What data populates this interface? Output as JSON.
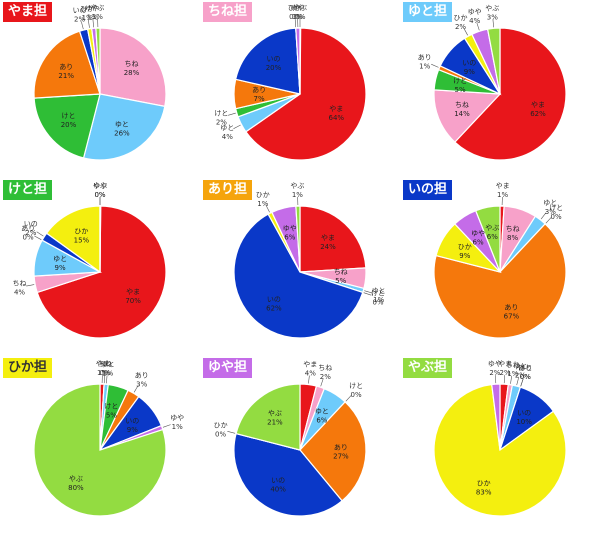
{
  "colors": {
    "やま": "#e8161b",
    "ちね": "#f7a1c9",
    "ゆと": "#6ecbfb",
    "けと": "#2fbe36",
    "あり": "#f5780c",
    "いの": "#0a38c8",
    "ひか": "#f4ef0f",
    "ゆや": "#c46ce8",
    "やぶ": "#93dc41"
  },
  "title_tag_colors": {
    "やま担": {
      "bg": "#e8161b",
      "fg": "#ffffff"
    },
    "ちね担": {
      "bg": "#f7a1c9",
      "fg": "#ffffff"
    },
    "ゆと担": {
      "bg": "#6ecbfb",
      "fg": "#ffffff"
    },
    "けと担": {
      "bg": "#2fbe36",
      "fg": "#ffffff"
    },
    "あり担": {
      "bg": "#f5a40c",
      "fg": "#ffffff"
    },
    "いの担": {
      "bg": "#0a38c8",
      "fg": "#ffffff"
    },
    "ひか担": {
      "bg": "#f4ef0f",
      "fg": "#333333"
    },
    "ゆや担": {
      "bg": "#c46ce8",
      "fg": "#ffffff"
    },
    "やぶ担": {
      "bg": "#93dc41",
      "fg": "#ffffff"
    }
  },
  "chart_data": [
    {
      "type": "pie",
      "title": "やま担",
      "labels": [
        "ちね",
        "ゆと",
        "けと",
        "あり",
        "いの",
        "ひか",
        "ゆや",
        "やぶ"
      ],
      "values": [
        28,
        26,
        20,
        21,
        2,
        1,
        1,
        1
      ]
    },
    {
      "type": "pie",
      "title": "ちね担",
      "labels": [
        "やま",
        "ゆと",
        "けと",
        "あり",
        "いの",
        "ひか",
        "ゆや",
        "やぶ"
      ],
      "values": [
        64,
        4,
        2,
        7,
        20,
        0,
        1,
        0
      ]
    },
    {
      "type": "pie",
      "title": "ゆと担",
      "labels": [
        "やま",
        "ちね",
        "けと",
        "あり",
        "いの",
        "ひか",
        "ゆや",
        "やぶ"
      ],
      "values": [
        62,
        14,
        5,
        1,
        9,
        2,
        4,
        3
      ]
    },
    {
      "type": "pie",
      "title": "けと担",
      "labels": [
        "やま",
        "ちね",
        "ゆと",
        "あり",
        "いの",
        "ひか",
        "ゆや",
        "やぶ"
      ],
      "values": [
        70,
        4,
        9,
        0,
        2,
        15,
        0,
        0
      ]
    },
    {
      "type": "pie",
      "title": "あり担",
      "labels": [
        "やま",
        "ちね",
        "ゆと",
        "けと",
        "いの",
        "ひか",
        "ゆや",
        "やぶ"
      ],
      "values": [
        24,
        5,
        1,
        0,
        62,
        1,
        6,
        1
      ]
    },
    {
      "type": "pie",
      "title": "いの担",
      "labels": [
        "やま",
        "ちね",
        "ゆと",
        "けと",
        "あり",
        "ひか",
        "ゆや",
        "やぶ"
      ],
      "values": [
        1,
        8,
        3,
        0,
        67,
        9,
        6,
        6
      ]
    },
    {
      "type": "pie",
      "title": "ひか担",
      "labels": [
        "やま",
        "ちね",
        "ゆと",
        "けと",
        "あり",
        "いの",
        "ゆや",
        "やぶ"
      ],
      "values": [
        1,
        0,
        1,
        5,
        3,
        9,
        1,
        80
      ]
    },
    {
      "type": "pie",
      "title": "ゆや担",
      "labels": [
        "やま",
        "ちね",
        "ゆと",
        "けと",
        "あり",
        "いの",
        "ひか",
        "やぶ"
      ],
      "values": [
        4,
        2,
        6,
        0,
        27,
        40,
        0,
        21
      ]
    },
    {
      "type": "pie",
      "title": "やぶ担",
      "labels": [
        "やま",
        "ちね",
        "ゆと",
        "けと",
        "あり",
        "いの",
        "ひか",
        "ゆや"
      ],
      "values": [
        2,
        1,
        2,
        0,
        0,
        10,
        83,
        2
      ]
    }
  ]
}
